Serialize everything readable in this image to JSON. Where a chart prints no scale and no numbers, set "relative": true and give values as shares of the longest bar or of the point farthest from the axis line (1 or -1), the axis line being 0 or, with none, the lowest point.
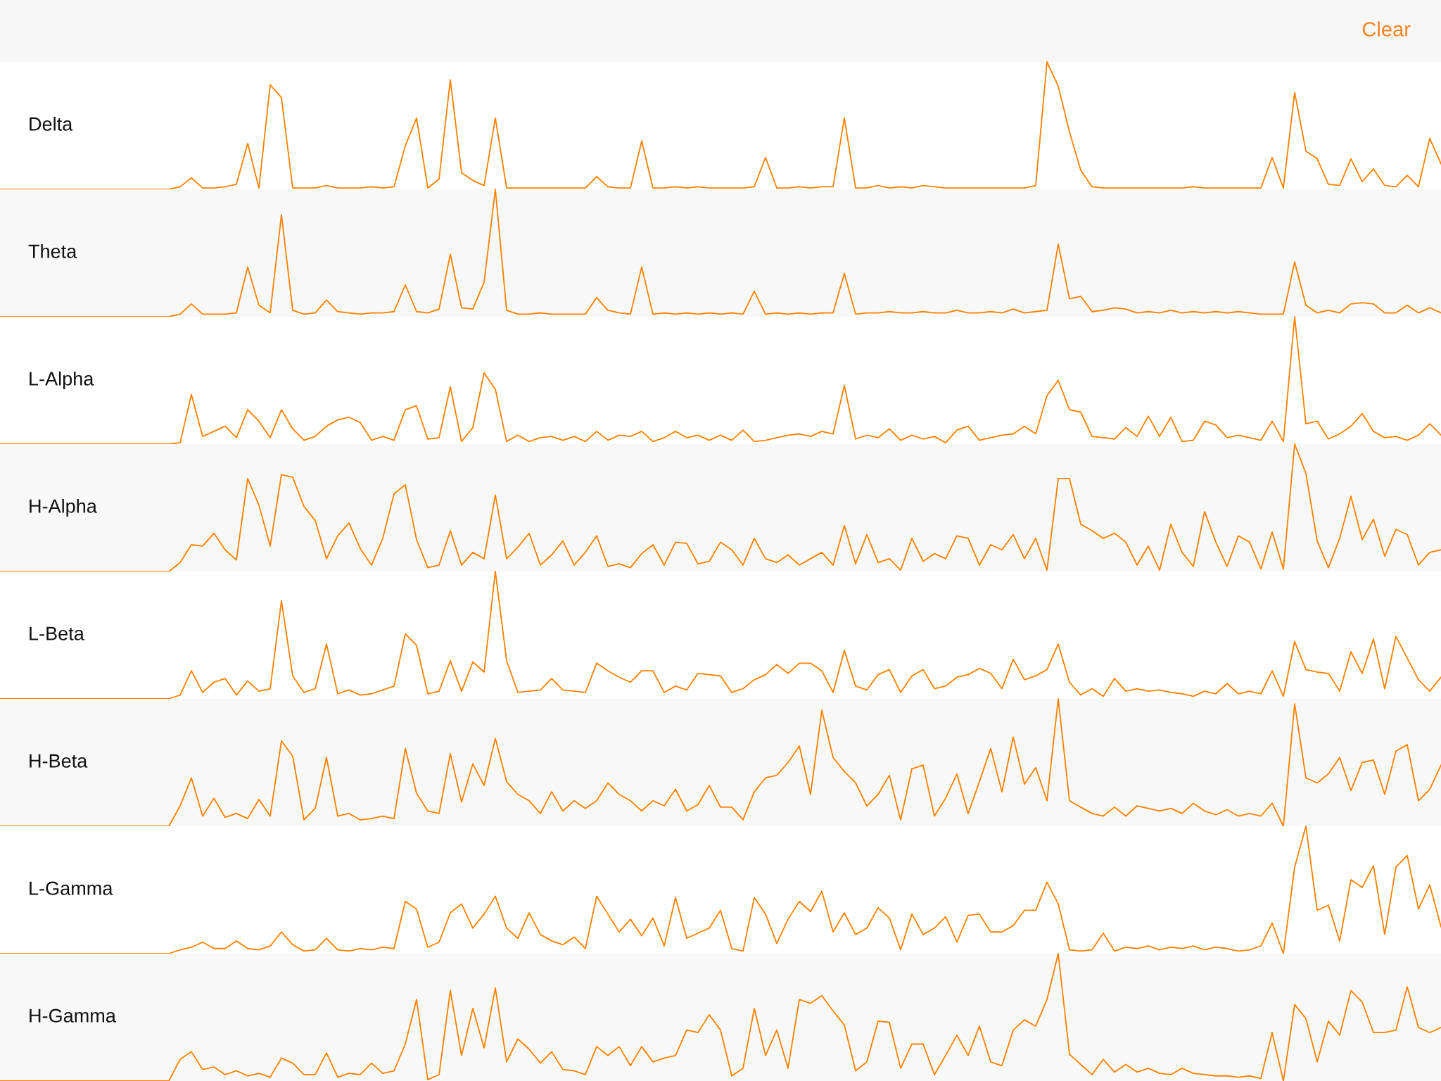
{
  "chart_data": [
    {
      "type": "line",
      "relative": true,
      "annotations": [
        "Clear"
      ],
      "categories": [
        null,
        null,
        null,
        null,
        null,
        null,
        null,
        null,
        null,
        null,
        null,
        null,
        null,
        null,
        null,
        null,
        null,
        null,
        null,
        null,
        null,
        null,
        null,
        null,
        null,
        null,
        null,
        null,
        null,
        null,
        null,
        null,
        null,
        null,
        null,
        null,
        null,
        null,
        null,
        null,
        null,
        null,
        null,
        null,
        null,
        null,
        null,
        null,
        null,
        null,
        null,
        null,
        null,
        null,
        null,
        null,
        null,
        null,
        null,
        null,
        null,
        null,
        null,
        null,
        null,
        null,
        null,
        null,
        null,
        null,
        null,
        null,
        null,
        null,
        null,
        null,
        null,
        null,
        null,
        null,
        null,
        null,
        null,
        null,
        null,
        null,
        null,
        null,
        null,
        null,
        null,
        null,
        null,
        null,
        null,
        null,
        null,
        null,
        null,
        null,
        null,
        null,
        null,
        null,
        null,
        null,
        null,
        null,
        null,
        null,
        null,
        null,
        null,
        null,
        null,
        null,
        null,
        null,
        null,
        null,
        null,
        null,
        null,
        null,
        null,
        null,
        null,
        null,
        null
      ],
      "series": [
        {
          "name": "Delta",
          "color": "#ff8000",
          "values": [
            0,
            0,
            0,
            0,
            0,
            0,
            0,
            0,
            0,
            0,
            0,
            0,
            0,
            0,
            0,
            0,
            0.02,
            0.09,
            0.01,
            0.01,
            0.02,
            0.04,
            0.36,
            0.01,
            0.82,
            0.72,
            0.01,
            0.01,
            0.01,
            0.03,
            0.01,
            0.01,
            0.01,
            0.02,
            0.01,
            0.02,
            0.34,
            0.56,
            0.01,
            0.08,
            0.86,
            0.13,
            0.07,
            0.03,
            0.56,
            0.01,
            0.01,
            0.01,
            0.01,
            0.01,
            0.01,
            0.01,
            0.01,
            0.1,
            0.02,
            0.01,
            0.01,
            0.38,
            0.01,
            0.01,
            0.02,
            0.01,
            0.02,
            0.01,
            0.01,
            0.01,
            0.01,
            0.02,
            0.25,
            0.01,
            0.01,
            0.02,
            0.01,
            0.02,
            0.02,
            0.56,
            0.01,
            0.01,
            0.03,
            0.01,
            0.02,
            0.01,
            0.03,
            0.02,
            0.01,
            0.01,
            0.01,
            0.01,
            0.01,
            0.01,
            0.01,
            0.01,
            0.03,
            1.0,
            0.81,
            0.45,
            0.15,
            0.02,
            0.01,
            0.01,
            0.01,
            0.01,
            0.01,
            0.01,
            0.01,
            0.01,
            0.02,
            0.01,
            0.01,
            0.01,
            0.01,
            0.01,
            0.01,
            0.25,
            0.01,
            0.76,
            0.3,
            0.24,
            0.04,
            0.03,
            0.24,
            0.06,
            0.16,
            0.03,
            0.02,
            0.11,
            0.02,
            0.4,
            0.2
          ]
        }
      ]
    },
    {
      "type": "line",
      "relative": true,
      "categories": [
        null,
        null,
        null,
        null,
        null,
        null,
        null,
        null,
        null,
        null,
        null,
        null,
        null,
        null,
        null,
        null,
        null,
        null,
        null,
        null,
        null,
        null,
        null,
        null,
        null,
        null,
        null,
        null,
        null,
        null,
        null,
        null,
        null,
        null,
        null,
        null,
        null,
        null,
        null,
        null,
        null,
        null,
        null,
        null,
        null,
        null,
        null,
        null,
        null,
        null,
        null,
        null,
        null,
        null,
        null,
        null,
        null,
        null,
        null,
        null,
        null,
        null,
        null,
        null,
        null,
        null,
        null,
        null,
        null,
        null,
        null,
        null,
        null,
        null,
        null,
        null,
        null,
        null,
        null,
        null,
        null,
        null,
        null,
        null,
        null,
        null,
        null,
        null,
        null,
        null,
        null,
        null,
        null,
        null,
        null,
        null,
        null,
        null,
        null,
        null,
        null,
        null,
        null,
        null,
        null,
        null,
        null,
        null,
        null,
        null,
        null,
        null,
        null,
        null,
        null,
        null,
        null,
        null,
        null,
        null,
        null,
        null,
        null,
        null,
        null,
        null,
        null,
        null,
        null
      ],
      "series": [
        {
          "name": "Theta",
          "color": "#ff8000",
          "values": [
            0,
            0,
            0,
            0,
            0,
            0,
            0,
            0,
            0,
            0,
            0,
            0,
            0,
            0,
            0,
            0,
            0.02,
            0.1,
            0.02,
            0.02,
            0.02,
            0.03,
            0.39,
            0.09,
            0.03,
            0.8,
            0.05,
            0.02,
            0.03,
            0.13,
            0.04,
            0.03,
            0.02,
            0.03,
            0.03,
            0.04,
            0.25,
            0.04,
            0.03,
            0.06,
            0.49,
            0.07,
            0.06,
            0.27,
            1.0,
            0.05,
            0.02,
            0.02,
            0.03,
            0.02,
            0.02,
            0.02,
            0.02,
            0.15,
            0.05,
            0.03,
            0.02,
            0.39,
            0.02,
            0.03,
            0.02,
            0.03,
            0.02,
            0.03,
            0.02,
            0.03,
            0.02,
            0.2,
            0.02,
            0.03,
            0.02,
            0.03,
            0.02,
            0.03,
            0.03,
            0.34,
            0.02,
            0.03,
            0.03,
            0.04,
            0.03,
            0.03,
            0.04,
            0.03,
            0.03,
            0.05,
            0.03,
            0.03,
            0.04,
            0.03,
            0.06,
            0.03,
            0.04,
            0.05,
            0.57,
            0.14,
            0.16,
            0.04,
            0.05,
            0.07,
            0.06,
            0.03,
            0.04,
            0.03,
            0.05,
            0.03,
            0.04,
            0.03,
            0.04,
            0.03,
            0.04,
            0.03,
            0.02,
            0.02,
            0.02,
            0.43,
            0.09,
            0.03,
            0.05,
            0.03,
            0.1,
            0.11,
            0.1,
            0.03,
            0.03,
            0.09,
            0.03,
            0.07,
            0.03
          ]
        }
      ]
    },
    {
      "type": "line",
      "relative": true,
      "categories": [
        null,
        null,
        null,
        null,
        null,
        null,
        null,
        null,
        null,
        null,
        null,
        null,
        null,
        null,
        null,
        null,
        null,
        null,
        null,
        null,
        null,
        null,
        null,
        null,
        null,
        null,
        null,
        null,
        null,
        null,
        null,
        null,
        null,
        null,
        null,
        null,
        null,
        null,
        null,
        null,
        null,
        null,
        null,
        null,
        null,
        null,
        null,
        null,
        null,
        null,
        null,
        null,
        null,
        null,
        null,
        null,
        null,
        null,
        null,
        null,
        null,
        null,
        null,
        null,
        null,
        null,
        null,
        null,
        null,
        null,
        null,
        null,
        null,
        null,
        null,
        null,
        null,
        null,
        null,
        null,
        null,
        null,
        null,
        null,
        null,
        null,
        null,
        null,
        null,
        null,
        null,
        null,
        null,
        null,
        null,
        null,
        null,
        null,
        null,
        null,
        null,
        null,
        null,
        null,
        null,
        null,
        null,
        null,
        null,
        null,
        null,
        null,
        null,
        null,
        null,
        null,
        null,
        null,
        null,
        null,
        null,
        null,
        null,
        null,
        null,
        null,
        null,
        null,
        null
      ],
      "series": [
        {
          "name": "L-Alpha",
          "color": "#ff8000",
          "values": [
            0,
            0,
            0,
            0,
            0,
            0,
            0,
            0,
            0,
            0,
            0,
            0,
            0,
            0,
            0,
            0,
            0.01,
            0.39,
            0.06,
            0.1,
            0.14,
            0.05,
            0.27,
            0.18,
            0.05,
            0.27,
            0.12,
            0.03,
            0.06,
            0.14,
            0.19,
            0.21,
            0.17,
            0.03,
            0.06,
            0.03,
            0.27,
            0.3,
            0.04,
            0.05,
            0.45,
            0.02,
            0.13,
            0.56,
            0.43,
            0.02,
            0.07,
            0.02,
            0.05,
            0.06,
            0.03,
            0.06,
            0.02,
            0.1,
            0.03,
            0.07,
            0.06,
            0.1,
            0.02,
            0.05,
            0.1,
            0.05,
            0.07,
            0.03,
            0.07,
            0.03,
            0.11,
            0.02,
            0.03,
            0.05,
            0.07,
            0.08,
            0.06,
            0.1,
            0.08,
            0.46,
            0.04,
            0.07,
            0.05,
            0.12,
            0.03,
            0.07,
            0.04,
            0.06,
            0.01,
            0.11,
            0.14,
            0.03,
            0.05,
            0.07,
            0.08,
            0.14,
            0.08,
            0.38,
            0.5,
            0.27,
            0.25,
            0.06,
            0.05,
            0.04,
            0.13,
            0.06,
            0.22,
            0.06,
            0.21,
            0.02,
            0.03,
            0.18,
            0.15,
            0.05,
            0.07,
            0.05,
            0.03,
            0.18,
            0.02,
            1.0,
            0.16,
            0.18,
            0.04,
            0.08,
            0.14,
            0.24,
            0.1,
            0.05,
            0.06,
            0.03,
            0.07,
            0.16,
            0.07
          ]
        }
      ]
    },
    {
      "type": "line",
      "relative": true,
      "categories": [
        null,
        null,
        null,
        null,
        null,
        null,
        null,
        null,
        null,
        null,
        null,
        null,
        null,
        null,
        null,
        null,
        null,
        null,
        null,
        null,
        null,
        null,
        null,
        null,
        null,
        null,
        null,
        null,
        null,
        null,
        null,
        null,
        null,
        null,
        null,
        null,
        null,
        null,
        null,
        null,
        null,
        null,
        null,
        null,
        null,
        null,
        null,
        null,
        null,
        null,
        null,
        null,
        null,
        null,
        null,
        null,
        null,
        null,
        null,
        null,
        null,
        null,
        null,
        null,
        null,
        null,
        null,
        null,
        null,
        null,
        null,
        null,
        null,
        null,
        null,
        null,
        null,
        null,
        null,
        null,
        null,
        null,
        null,
        null,
        null,
        null,
        null,
        null,
        null,
        null,
        null,
        null,
        null,
        null,
        null,
        null,
        null,
        null,
        null,
        null,
        null,
        null,
        null,
        null,
        null,
        null,
        null,
        null,
        null,
        null,
        null,
        null,
        null,
        null,
        null,
        null,
        null,
        null,
        null,
        null,
        null,
        null,
        null,
        null,
        null,
        null,
        null,
        null,
        null
      ],
      "series": [
        {
          "name": "H-Alpha",
          "color": "#ff8000",
          "values": [
            0,
            0,
            0,
            0,
            0,
            0,
            0,
            0,
            0,
            0,
            0,
            0,
            0,
            0,
            0,
            0,
            0.07,
            0.21,
            0.2,
            0.3,
            0.17,
            0.09,
            0.73,
            0.52,
            0.2,
            0.76,
            0.74,
            0.51,
            0.4,
            0.1,
            0.28,
            0.38,
            0.18,
            0.05,
            0.26,
            0.61,
            0.68,
            0.25,
            0.03,
            0.05,
            0.32,
            0.05,
            0.15,
            0.1,
            0.6,
            0.1,
            0.19,
            0.3,
            0.05,
            0.13,
            0.24,
            0.05,
            0.15,
            0.28,
            0.04,
            0.06,
            0.03,
            0.14,
            0.21,
            0.05,
            0.23,
            0.22,
            0.06,
            0.08,
            0.23,
            0.17,
            0.05,
            0.26,
            0.1,
            0.07,
            0.13,
            0.05,
            0.1,
            0.15,
            0.05,
            0.36,
            0.06,
            0.29,
            0.07,
            0.1,
            0.01,
            0.26,
            0.08,
            0.14,
            0.1,
            0.28,
            0.26,
            0.05,
            0.21,
            0.17,
            0.29,
            0.1,
            0.26,
            0.01,
            0.73,
            0.73,
            0.37,
            0.32,
            0.26,
            0.3,
            0.23,
            0.05,
            0.2,
            0.01,
            0.37,
            0.15,
            0.04,
            0.47,
            0.23,
            0.04,
            0.28,
            0.23,
            0.02,
            0.31,
            0.02,
            1.0,
            0.77,
            0.24,
            0.03,
            0.26,
            0.59,
            0.25,
            0.41,
            0.12,
            0.33,
            0.29,
            0.05,
            0.15,
            0.17
          ]
        }
      ]
    },
    {
      "type": "line",
      "relative": true,
      "categories": [
        null,
        null,
        null,
        null,
        null,
        null,
        null,
        null,
        null,
        null,
        null,
        null,
        null,
        null,
        null,
        null,
        null,
        null,
        null,
        null,
        null,
        null,
        null,
        null,
        null,
        null,
        null,
        null,
        null,
        null,
        null,
        null,
        null,
        null,
        null,
        null,
        null,
        null,
        null,
        null,
        null,
        null,
        null,
        null,
        null,
        null,
        null,
        null,
        null,
        null,
        null,
        null,
        null,
        null,
        null,
        null,
        null,
        null,
        null,
        null,
        null,
        null,
        null,
        null,
        null,
        null,
        null,
        null,
        null,
        null,
        null,
        null,
        null,
        null,
        null,
        null,
        null,
        null,
        null,
        null,
        null,
        null,
        null,
        null,
        null,
        null,
        null,
        null,
        null,
        null,
        null,
        null,
        null,
        null,
        null,
        null,
        null,
        null,
        null,
        null,
        null,
        null,
        null,
        null,
        null,
        null,
        null,
        null,
        null,
        null,
        null,
        null,
        null,
        null,
        null,
        null,
        null,
        null,
        null,
        null,
        null,
        null,
        null,
        null,
        null,
        null,
        null,
        null,
        null
      ],
      "series": [
        {
          "name": "L-Beta",
          "color": "#ff8000",
          "values": [
            0,
            0,
            0,
            0,
            0,
            0,
            0,
            0,
            0,
            0,
            0,
            0,
            0,
            0,
            0,
            0,
            0.03,
            0.22,
            0.05,
            0.13,
            0.16,
            0.03,
            0.14,
            0.06,
            0.08,
            0.77,
            0.18,
            0.05,
            0.08,
            0.43,
            0.04,
            0.07,
            0.03,
            0.04,
            0.07,
            0.1,
            0.51,
            0.42,
            0.04,
            0.06,
            0.3,
            0.06,
            0.29,
            0.21,
            1.0,
            0.3,
            0.05,
            0.06,
            0.07,
            0.16,
            0.07,
            0.06,
            0.05,
            0.28,
            0.22,
            0.17,
            0.13,
            0.22,
            0.22,
            0.05,
            0.1,
            0.07,
            0.2,
            0.19,
            0.18,
            0.05,
            0.08,
            0.15,
            0.19,
            0.27,
            0.2,
            0.28,
            0.28,
            0.22,
            0.05,
            0.38,
            0.1,
            0.07,
            0.19,
            0.23,
            0.05,
            0.18,
            0.23,
            0.08,
            0.1,
            0.17,
            0.19,
            0.24,
            0.2,
            0.08,
            0.31,
            0.15,
            0.18,
            0.23,
            0.43,
            0.13,
            0.03,
            0.08,
            0.02,
            0.16,
            0.06,
            0.08,
            0.06,
            0.07,
            0.05,
            0.04,
            0.02,
            0.06,
            0.04,
            0.12,
            0.04,
            0.06,
            0.04,
            0.22,
            0.02,
            0.45,
            0.23,
            0.21,
            0.2,
            0.06,
            0.37,
            0.2,
            0.47,
            0.08,
            0.49,
            0.32,
            0.15,
            0.06,
            0.17
          ]
        }
      ]
    },
    {
      "type": "line",
      "relative": true,
      "categories": [
        null,
        null,
        null,
        null,
        null,
        null,
        null,
        null,
        null,
        null,
        null,
        null,
        null,
        null,
        null,
        null,
        null,
        null,
        null,
        null,
        null,
        null,
        null,
        null,
        null,
        null,
        null,
        null,
        null,
        null,
        null,
        null,
        null,
        null,
        null,
        null,
        null,
        null,
        null,
        null,
        null,
        null,
        null,
        null,
        null,
        null,
        null,
        null,
        null,
        null,
        null,
        null,
        null,
        null,
        null,
        null,
        null,
        null,
        null,
        null,
        null,
        null,
        null,
        null,
        null,
        null,
        null,
        null,
        null,
        null,
        null,
        null,
        null,
        null,
        null,
        null,
        null,
        null,
        null,
        null,
        null,
        null,
        null,
        null,
        null,
        null,
        null,
        null,
        null,
        null,
        null,
        null,
        null,
        null,
        null,
        null,
        null,
        null,
        null,
        null,
        null,
        null,
        null,
        null,
        null,
        null,
        null,
        null,
        null,
        null,
        null,
        null,
        null,
        null,
        null,
        null,
        null,
        null,
        null,
        null,
        null,
        null,
        null,
        null,
        null,
        null,
        null,
        null,
        null
      ],
      "series": [
        {
          "name": "H-Beta",
          "color": "#ff8000",
          "values": [
            0,
            0,
            0,
            0,
            0,
            0,
            0,
            0,
            0,
            0,
            0,
            0,
            0,
            0,
            0,
            0,
            0.16,
            0.38,
            0.08,
            0.22,
            0.07,
            0.1,
            0.06,
            0.21,
            0.08,
            0.67,
            0.55,
            0.05,
            0.14,
            0.54,
            0.08,
            0.1,
            0.05,
            0.06,
            0.08,
            0.06,
            0.61,
            0.26,
            0.12,
            0.1,
            0.57,
            0.19,
            0.49,
            0.32,
            0.69,
            0.35,
            0.25,
            0.2,
            0.1,
            0.27,
            0.12,
            0.2,
            0.14,
            0.2,
            0.34,
            0.25,
            0.2,
            0.12,
            0.2,
            0.16,
            0.29,
            0.12,
            0.17,
            0.32,
            0.15,
            0.15,
            0.05,
            0.27,
            0.38,
            0.4,
            0.5,
            0.63,
            0.25,
            0.91,
            0.54,
            0.43,
            0.34,
            0.16,
            0.25,
            0.4,
            0.05,
            0.45,
            0.48,
            0.08,
            0.22,
            0.41,
            0.1,
            0.35,
            0.61,
            0.27,
            0.7,
            0.33,
            0.46,
            0.2,
            1.0,
            0.2,
            0.15,
            0.1,
            0.08,
            0.15,
            0.08,
            0.16,
            0.14,
            0.12,
            0.14,
            0.1,
            0.18,
            0.12,
            0.09,
            0.13,
            0.08,
            0.1,
            0.08,
            0.18,
            0.0,
            0.96,
            0.38,
            0.34,
            0.41,
            0.54,
            0.28,
            0.5,
            0.52,
            0.25,
            0.59,
            0.64,
            0.2,
            0.29,
            0.48
          ]
        }
      ]
    },
    {
      "type": "line",
      "relative": true,
      "categories": [
        null,
        null,
        null,
        null,
        null,
        null,
        null,
        null,
        null,
        null,
        null,
        null,
        null,
        null,
        null,
        null,
        null,
        null,
        null,
        null,
        null,
        null,
        null,
        null,
        null,
        null,
        null,
        null,
        null,
        null,
        null,
        null,
        null,
        null,
        null,
        null,
        null,
        null,
        null,
        null,
        null,
        null,
        null,
        null,
        null,
        null,
        null,
        null,
        null,
        null,
        null,
        null,
        null,
        null,
        null,
        null,
        null,
        null,
        null,
        null,
        null,
        null,
        null,
        null,
        null,
        null,
        null,
        null,
        null,
        null,
        null,
        null,
        null,
        null,
        null,
        null,
        null,
        null,
        null,
        null,
        null,
        null,
        null,
        null,
        null,
        null,
        null,
        null,
        null,
        null,
        null,
        null,
        null,
        null,
        null,
        null,
        null,
        null,
        null,
        null,
        null,
        null,
        null,
        null,
        null,
        null,
        null,
        null,
        null,
        null,
        null,
        null,
        null,
        null,
        null,
        null,
        null,
        null,
        null,
        null,
        null,
        null,
        null,
        null,
        null,
        null,
        null,
        null,
        null
      ],
      "series": [
        {
          "name": "L-Gamma",
          "color": "#ff8000",
          "values": [
            0,
            0,
            0,
            0,
            0,
            0,
            0,
            0,
            0,
            0,
            0,
            0,
            0,
            0,
            0,
            0,
            0.03,
            0.05,
            0.09,
            0.04,
            0.04,
            0.1,
            0.04,
            0.03,
            0.06,
            0.17,
            0.07,
            0.02,
            0.03,
            0.12,
            0.03,
            0.02,
            0.04,
            0.03,
            0.05,
            0.04,
            0.41,
            0.35,
            0.05,
            0.09,
            0.32,
            0.39,
            0.2,
            0.31,
            0.45,
            0.2,
            0.12,
            0.32,
            0.15,
            0.1,
            0.07,
            0.13,
            0.04,
            0.45,
            0.31,
            0.17,
            0.27,
            0.14,
            0.28,
            0.06,
            0.44,
            0.12,
            0.16,
            0.2,
            0.34,
            0.04,
            0.02,
            0.44,
            0.31,
            0.08,
            0.27,
            0.41,
            0.33,
            0.49,
            0.17,
            0.32,
            0.15,
            0.2,
            0.36,
            0.28,
            0.03,
            0.31,
            0.15,
            0.2,
            0.29,
            0.09,
            0.3,
            0.31,
            0.17,
            0.17,
            0.22,
            0.34,
            0.34,
            0.56,
            0.39,
            0.03,
            0.02,
            0.03,
            0.16,
            0.02,
            0.05,
            0.04,
            0.06,
            0.03,
            0.05,
            0.04,
            0.06,
            0.03,
            0.05,
            0.04,
            0.02,
            0.03,
            0.06,
            0.24,
            0.0,
            0.68,
            1.0,
            0.34,
            0.38,
            0.1,
            0.58,
            0.52,
            0.69,
            0.15,
            0.68,
            0.77,
            0.35,
            0.54,
            0.21
          ]
        }
      ]
    },
    {
      "type": "line",
      "relative": true,
      "categories": [
        null,
        null,
        null,
        null,
        null,
        null,
        null,
        null,
        null,
        null,
        null,
        null,
        null,
        null,
        null,
        null,
        null,
        null,
        null,
        null,
        null,
        null,
        null,
        null,
        null,
        null,
        null,
        null,
        null,
        null,
        null,
        null,
        null,
        null,
        null,
        null,
        null,
        null,
        null,
        null,
        null,
        null,
        null,
        null,
        null,
        null,
        null,
        null,
        null,
        null,
        null,
        null,
        null,
        null,
        null,
        null,
        null,
        null,
        null,
        null,
        null,
        null,
        null,
        null,
        null,
        null,
        null,
        null,
        null,
        null,
        null,
        null,
        null,
        null,
        null,
        null,
        null,
        null,
        null,
        null,
        null,
        null,
        null,
        null,
        null,
        null,
        null,
        null,
        null,
        null,
        null,
        null,
        null,
        null,
        null,
        null,
        null,
        null,
        null,
        null,
        null,
        null,
        null,
        null,
        null,
        null,
        null,
        null,
        null,
        null,
        null,
        null,
        null,
        null,
        null,
        null,
        null,
        null,
        null,
        null,
        null,
        null,
        null,
        null,
        null,
        null,
        null,
        null,
        null
      ],
      "series": [
        {
          "name": "H-Gamma",
          "color": "#ff8000",
          "values": [
            0,
            0,
            0,
            0,
            0,
            0,
            0,
            0,
            0,
            0,
            0,
            0,
            0,
            0,
            0,
            0,
            0.17,
            0.23,
            0.09,
            0.11,
            0.05,
            0.08,
            0.04,
            0.06,
            0.03,
            0.18,
            0.14,
            0.05,
            0.05,
            0.22,
            0.03,
            0.06,
            0.05,
            0.14,
            0.06,
            0.08,
            0.29,
            0.64,
            0.01,
            0.05,
            0.71,
            0.2,
            0.57,
            0.26,
            0.73,
            0.15,
            0.33,
            0.25,
            0.14,
            0.23,
            0.09,
            0.08,
            0.05,
            0.27,
            0.2,
            0.27,
            0.12,
            0.27,
            0.15,
            0.18,
            0.2,
            0.4,
            0.38,
            0.52,
            0.4,
            0.04,
            0.1,
            0.57,
            0.2,
            0.4,
            0.1,
            0.64,
            0.61,
            0.67,
            0.55,
            0.44,
            0.08,
            0.15,
            0.47,
            0.46,
            0.1,
            0.29,
            0.29,
            0.05,
            0.2,
            0.36,
            0.2,
            0.43,
            0.15,
            0.12,
            0.4,
            0.48,
            0.43,
            0.64,
            1.0,
            0.21,
            0.13,
            0.05,
            0.17,
            0.07,
            0.13,
            0.07,
            0.1,
            0.06,
            0.05,
            0.1,
            0.06,
            0.05,
            0.04,
            0.04,
            0.03,
            0.04,
            0.02,
            0.38,
            0.0,
            0.6,
            0.49,
            0.15,
            0.47,
            0.36,
            0.71,
            0.62,
            0.38,
            0.38,
            0.4,
            0.74,
            0.42,
            0.38,
            0.42
          ]
        }
      ]
    }
  ]
}
